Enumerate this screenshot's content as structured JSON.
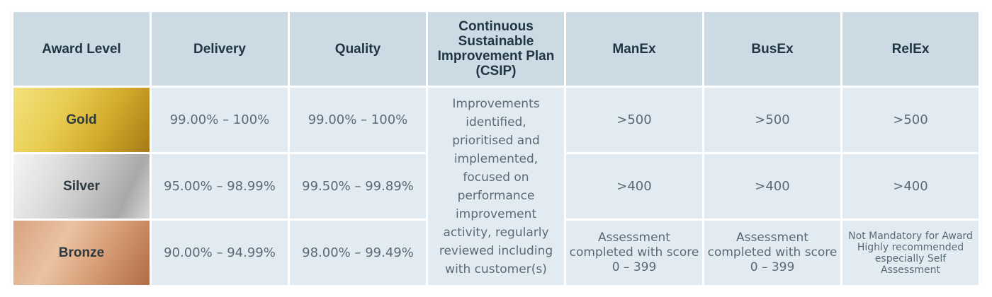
{
  "headers": {
    "award_level": "Award Level",
    "delivery": "Delivery",
    "quality": "Quality",
    "csip": "Continuous Sustainable Improvement Plan (CSIP)",
    "manex": "ManEx",
    "busex": "BusEx",
    "relex": "RelEx"
  },
  "rows": [
    {
      "level": "Gold",
      "delivery": "99.00% – 100%",
      "quality": "99.00% – 100%",
      "manex": ">500",
      "busex": ">500",
      "relex": ">500"
    },
    {
      "level": "Silver",
      "delivery": "95.00% – 98.99%",
      "quality": "99.50% – 99.89%",
      "manex": ">400",
      "busex": ">400",
      "relex": ">400"
    },
    {
      "level": "Bronze",
      "delivery": "90.00% – 94.99%",
      "quality": "98.00% – 99.49%",
      "manex": "Assessment completed with score 0 – 399",
      "busex": "Assessment completed with score 0 – 399",
      "relex": "Not Mandatory for Award Highly recommended especially Self Assessment"
    }
  ],
  "csip_text": "Improvements identified, prioritised and implemented, focused on performance improvement activity, regularly reviewed including with customer(s)",
  "colors": {
    "header_bg": "#ccdae4",
    "cell_bg": "#e2ebf1",
    "gold": "#d9b63a",
    "silver": "#c6c6c6",
    "bronze": "#d59b73"
  }
}
